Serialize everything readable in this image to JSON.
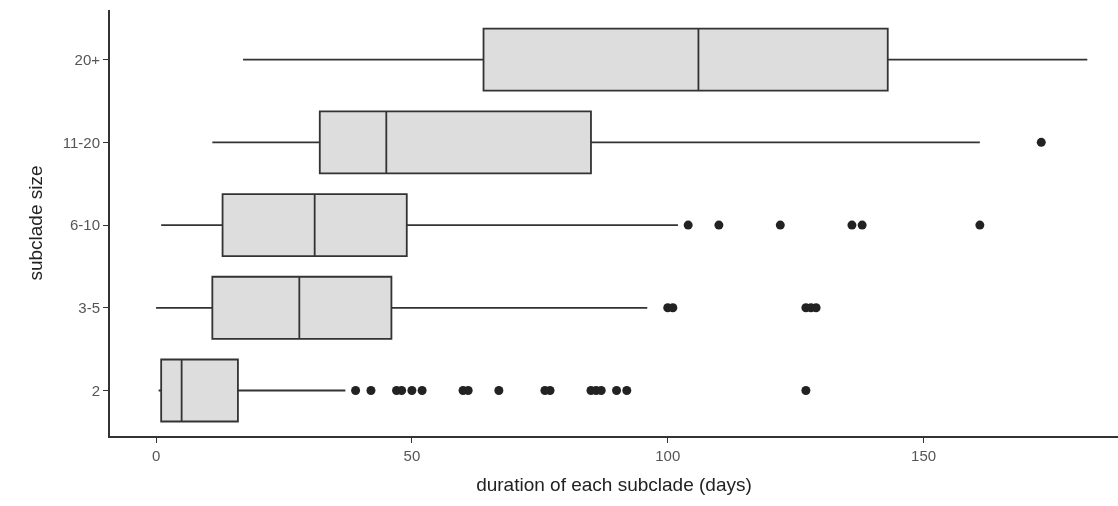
{
  "chart_data": {
    "type": "box",
    "orientation": "horizontal",
    "xlabel": "duration of each subclade (days)",
    "ylabel": "subclade size",
    "categories": [
      "20+",
      "11-20",
      "6-10",
      "3-5",
      "2"
    ],
    "boxes": [
      {
        "low": 17,
        "q1": 64,
        "median": 106,
        "q3": 143,
        "high": 182
      },
      {
        "low": 11,
        "q1": 32,
        "median": 45,
        "q3": 85,
        "high": 161,
        "outliers": [
          173
        ]
      },
      {
        "low": 1,
        "q1": 13,
        "median": 31,
        "q3": 49,
        "high": 102,
        "outliers": [
          104,
          110,
          122,
          136,
          138,
          161
        ]
      },
      {
        "low": 0,
        "q1": 11,
        "median": 28,
        "q3": 46,
        "high": 96,
        "outliers": [
          100,
          101,
          127,
          128,
          129
        ]
      },
      {
        "low": 0.5,
        "q1": 1,
        "median": 5,
        "q3": 16,
        "high": 37,
        "outliers": [
          39,
          42,
          47,
          48,
          50,
          52,
          60,
          61,
          67,
          76,
          77,
          85,
          86,
          87,
          90,
          92,
          127
        ]
      }
    ],
    "color": "#dddddd",
    "xlim": [
      -9,
      188
    ],
    "xticks": [
      0,
      50,
      100,
      150
    ]
  }
}
